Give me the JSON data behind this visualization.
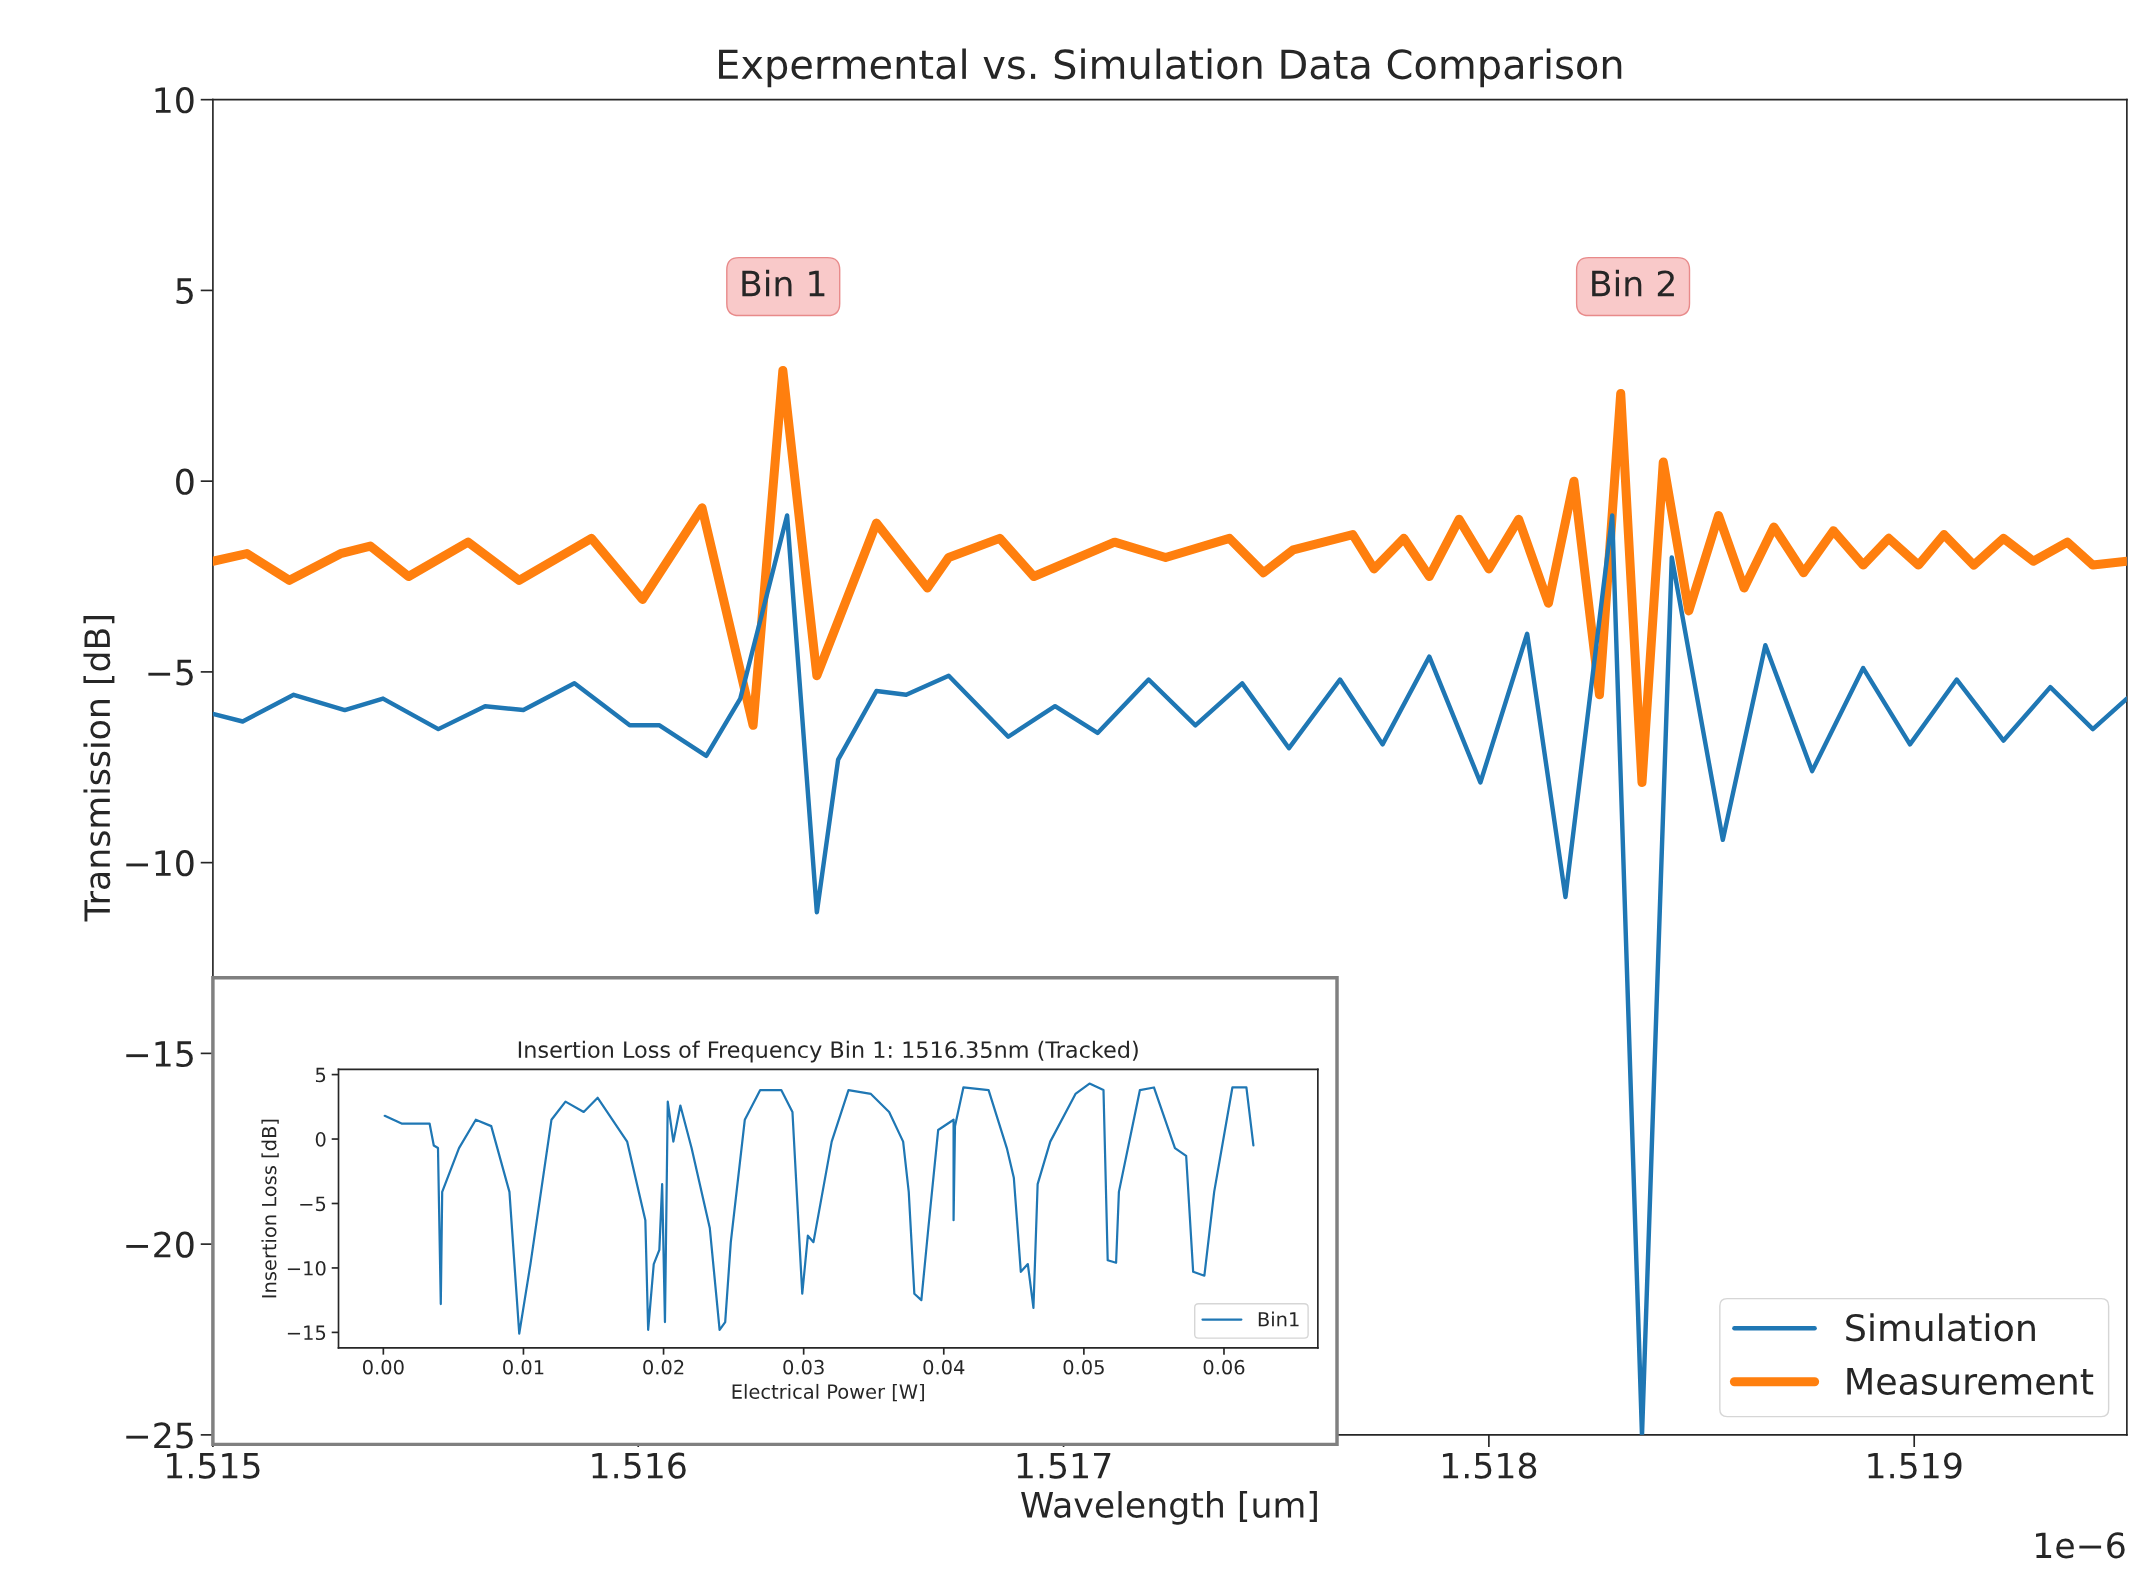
{
  "chart_data": [
    {
      "type": "line",
      "title": "Expermental vs. Simulation Data Comparison",
      "xlabel": "Wavelength [um]",
      "ylabel": "Transmission [dB]",
      "xlim": [
        1.515,
        1.5195
      ],
      "xticks": [
        1.515,
        1.516,
        1.517,
        1.518,
        1.519
      ],
      "ylim": [
        -25,
        10
      ],
      "yticks": [
        {
          "value": -25,
          "label": "−25"
        },
        {
          "value": -20,
          "label": "−20"
        },
        {
          "value": -15,
          "label": "−15"
        },
        {
          "value": -10,
          "label": "−10"
        },
        {
          "value": -5,
          "label": "−5"
        },
        0,
        5,
        10
      ],
      "legend": "bottom right",
      "grid": false,
      "annotations": [
        "Bin 1",
        "Bin 2",
        "1e−6"
      ],
      "series": [
        {
          "name": "Simulation",
          "color": "#1f77b4",
          "x": [
            1.515,
            1.51507,
            1.51519,
            1.51531,
            1.5154,
            1.51553,
            1.51564,
            1.51573,
            1.51585,
            1.51598,
            1.51605,
            1.51616,
            1.51624,
            1.51635,
            1.51642,
            1.51647,
            1.51656,
            1.51663,
            1.51673,
            1.51687,
            1.51698,
            1.51708,
            1.5172,
            1.51731,
            1.51742,
            1.51753,
            1.51765,
            1.51775,
            1.51786,
            1.51798,
            1.51809,
            1.51818,
            1.51829,
            1.51836,
            1.51843,
            1.51855,
            1.51865,
            1.51876,
            1.51888,
            1.51899,
            1.5191,
            1.51921,
            1.51932,
            1.51942,
            1.5195
          ],
          "values": [
            -6.1,
            -6.3,
            -5.6,
            -6.0,
            -5.7,
            -6.5,
            -5.9,
            -6.0,
            -5.3,
            -6.4,
            -6.4,
            -7.2,
            -5.7,
            -0.9,
            -11.3,
            -7.3,
            -5.5,
            -5.6,
            -5.1,
            -6.7,
            -5.9,
            -6.6,
            -5.2,
            -6.4,
            -5.3,
            -7.0,
            -5.2,
            -6.9,
            -4.6,
            -7.9,
            -4.0,
            -10.9,
            -0.9,
            -25,
            -2.0,
            -9.4,
            -4.3,
            -7.6,
            -4.9,
            -6.9,
            -5.2,
            -6.8,
            -5.4,
            -6.5,
            -5.7
          ]
        },
        {
          "name": "Measurement",
          "color": "#ff7f0e",
          "x": [
            1.515,
            1.51508,
            1.51518,
            1.5153,
            1.51537,
            1.51546,
            1.5156,
            1.51572,
            1.51589,
            1.51601,
            1.51615,
            1.51627,
            1.51634,
            1.51642,
            1.51656,
            1.51668,
            1.51673,
            1.51685,
            1.51693,
            1.51712,
            1.51724,
            1.51739,
            1.51747,
            1.51754,
            1.51768,
            1.51773,
            1.5178,
            1.51786,
            1.51793,
            1.518,
            1.51807,
            1.51814,
            1.5182,
            1.51826,
            1.51831,
            1.51836,
            1.51841,
            1.51847,
            1.51854,
            1.5186,
            1.51867,
            1.51874,
            1.51881,
            1.51888,
            1.51894,
            1.51901,
            1.51907,
            1.51914,
            1.51921,
            1.51928,
            1.51936,
            1.51942,
            1.5195
          ],
          "values": [
            -2.1,
            -1.9,
            -2.6,
            -1.9,
            -1.7,
            -2.5,
            -1.6,
            -2.6,
            -1.5,
            -3.1,
            -0.7,
            -6.4,
            2.9,
            -5.1,
            -1.1,
            -2.8,
            -2.0,
            -1.5,
            -2.5,
            -1.6,
            -2.0,
            -1.5,
            -2.4,
            -1.8,
            -1.4,
            -2.3,
            -1.5,
            -2.5,
            -1.0,
            -2.3,
            -1.0,
            -3.2,
            0.0,
            -5.6,
            2.3,
            -7.9,
            0.5,
            -3.4,
            -0.9,
            -2.8,
            -1.2,
            -2.4,
            -1.3,
            -2.2,
            -1.5,
            -2.2,
            -1.4,
            -2.2,
            -1.5,
            -2.1,
            -1.6,
            -2.2,
            -2.1
          ]
        }
      ]
    },
    {
      "type": "line",
      "title": "Insertion Loss of Frequency Bin 1: 1516.35nm (Tracked)",
      "xlabel": "Electrical Power [W]",
      "ylabel": "Insertion Loss [dB]",
      "xlim": [
        -0.0032,
        0.0667
      ],
      "xticks": [
        {
          "value": 0.0,
          "label": "0.00"
        },
        {
          "value": 0.01,
          "label": "0.01"
        },
        {
          "value": 0.02,
          "label": "0.02"
        },
        {
          "value": 0.03,
          "label": "0.03"
        },
        {
          "value": 0.04,
          "label": "0.04"
        },
        {
          "value": 0.05,
          "label": "0.05"
        },
        {
          "value": 0.06,
          "label": "0.06"
        }
      ],
      "ylim": [
        -16.2,
        5.4
      ],
      "yticks": [
        {
          "value": -15,
          "label": "−15"
        },
        {
          "value": -10,
          "label": "−10"
        },
        {
          "value": -5,
          "label": "−5"
        },
        0,
        5
      ],
      "legend": "bottom right",
      "grid": false,
      "series": [
        {
          "name": "Bin1",
          "color": "#1f77b4",
          "x": [
            0.0001,
            0.0013,
            0.0033,
            0.0036,
            0.0039,
            0.0041,
            0.0042,
            0.0054,
            0.0066,
            0.0077,
            0.009,
            0.0097,
            0.0105,
            0.012,
            0.013,
            0.0143,
            0.0153,
            0.0174,
            0.0187,
            0.0189,
            0.0193,
            0.0197,
            0.0199,
            0.0201,
            0.0203,
            0.0207,
            0.0212,
            0.022,
            0.0233,
            0.024,
            0.0244,
            0.0248,
            0.0258,
            0.0269,
            0.0284,
            0.0292,
            0.0297,
            0.0299,
            0.0303,
            0.0307,
            0.032,
            0.0332,
            0.0348,
            0.0361,
            0.0371,
            0.0375,
            0.0379,
            0.0384,
            0.0389,
            0.0396,
            0.0407,
            0.0407,
            0.0408,
            0.0414,
            0.0432,
            0.0445,
            0.045,
            0.0455,
            0.046,
            0.0464,
            0.0467,
            0.0476,
            0.0494,
            0.0504,
            0.0514,
            0.0517,
            0.0523,
            0.0525,
            0.054,
            0.055,
            0.0565,
            0.0573,
            0.0578,
            0.0586,
            0.0593,
            0.0606,
            0.0616,
            0.0621
          ],
          "values": [
            1.8,
            1.2,
            1.2,
            -0.5,
            -0.7,
            -12.8,
            -4.1,
            -0.7,
            1.5,
            1.0,
            -4.1,
            -15.1,
            -9.7,
            1.5,
            2.9,
            2.1,
            3.2,
            -0.2,
            -6.3,
            -14.8,
            -9.7,
            -8.6,
            -3.5,
            -14.2,
            2.9,
            -0.2,
            2.6,
            -0.7,
            -6.9,
            -14.8,
            -14.2,
            -8.0,
            1.5,
            3.8,
            3.8,
            2.1,
            -8.0,
            -12.0,
            -7.5,
            -8.0,
            -0.2,
            3.8,
            3.5,
            2.1,
            -0.2,
            -4.1,
            -12.0,
            -12.5,
            -6.9,
            0.7,
            1.5,
            -6.3,
            1.0,
            4.0,
            3.8,
            -0.7,
            -3.0,
            -10.3,
            -9.7,
            -13.1,
            -3.5,
            -0.2,
            3.5,
            4.3,
            3.8,
            -9.4,
            -9.6,
            -4.1,
            3.8,
            4.0,
            -0.7,
            -1.3,
            -10.3,
            -10.6,
            -4.1,
            4.0,
            4.0,
            -0.5
          ]
        }
      ]
    }
  ]
}
